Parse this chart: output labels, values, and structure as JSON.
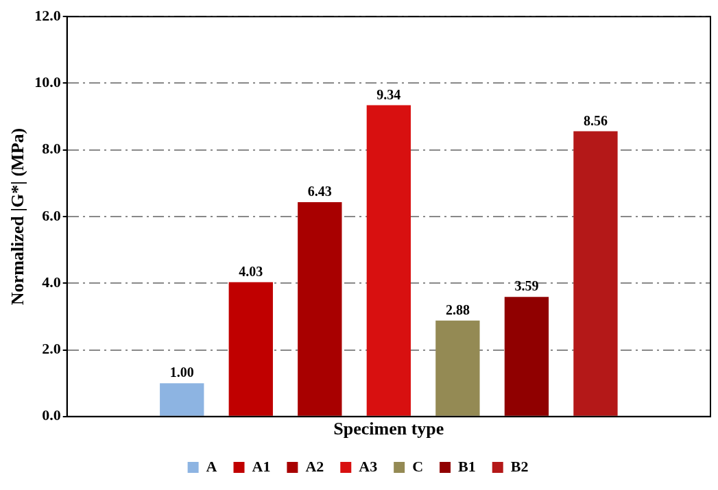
{
  "chart_data": {
    "type": "bar",
    "xlabel": "Specimen type",
    "ylabel": "Normalized |G*| (MPa)",
    "categories": [
      null
    ],
    "series": [
      {
        "name": "A",
        "color": "#8db4e2",
        "values": [
          1.0
        ],
        "value_labels": [
          "1.00"
        ]
      },
      {
        "name": "A1",
        "color": "#c00000",
        "values": [
          4.03
        ],
        "value_labels": [
          "4.03"
        ]
      },
      {
        "name": "A2",
        "color": "#a80000",
        "values": [
          6.43
        ],
        "value_labels": [
          "6.43"
        ]
      },
      {
        "name": "A3",
        "color": "#d81010",
        "values": [
          9.34
        ],
        "value_labels": [
          "9.34"
        ]
      },
      {
        "name": "C",
        "color": "#948a54",
        "values": [
          2.88
        ],
        "value_labels": [
          "2.88"
        ]
      },
      {
        "name": "B1",
        "color": "#900000",
        "values": [
          3.59
        ],
        "value_labels": [
          "3.59"
        ]
      },
      {
        "name": "B2",
        "color": "#b41818",
        "values": [
          8.56
        ],
        "value_labels": [
          "8.56"
        ]
      }
    ],
    "ylim": [
      0,
      12
    ],
    "yticks": [
      {
        "value": 0,
        "label": "0.0"
      },
      {
        "value": 2,
        "label": "2.0"
      },
      {
        "value": 4,
        "label": "4.0"
      },
      {
        "value": 6,
        "label": "6.0"
      },
      {
        "value": 8,
        "label": "8.0"
      },
      {
        "value": 10,
        "label": "10.0"
      },
      {
        "value": 12,
        "label": "12.0"
      }
    ],
    "grid": "y",
    "legend": "bottom"
  }
}
